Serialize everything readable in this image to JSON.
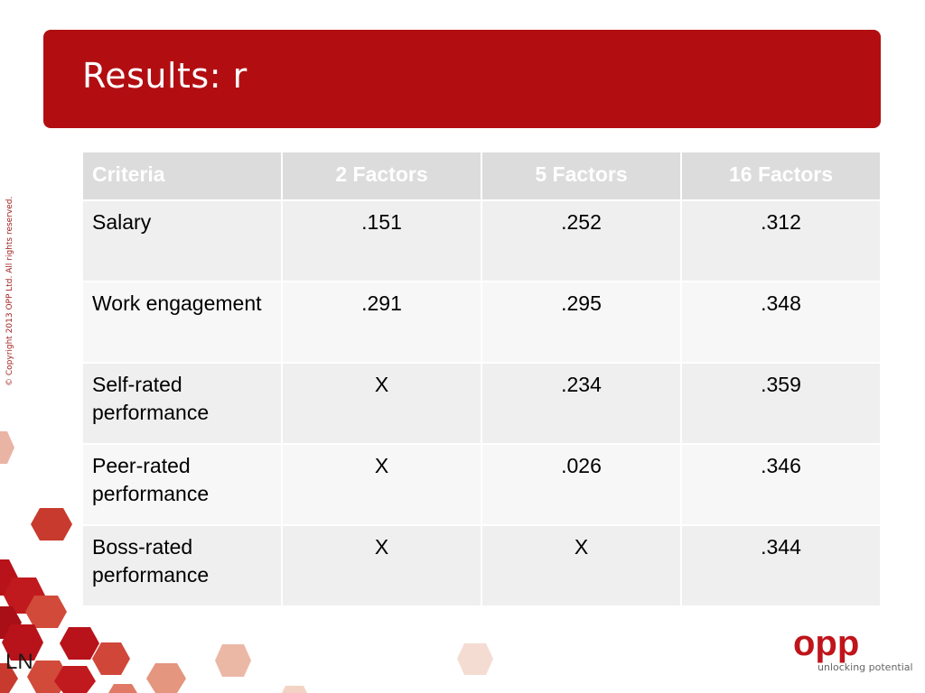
{
  "slide": {
    "title": "Results: r",
    "copyright": "© Copyright 2013 OPP Ltd. All rights reserved.",
    "footer_initials": "LN"
  },
  "table": {
    "headers": [
      "Criteria",
      "2 Factors",
      "5 Factors",
      "16 Factors"
    ],
    "rows": [
      {
        "criterion": "Salary",
        "f2": ".151",
        "f5": ".252",
        "f16": ".312"
      },
      {
        "criterion": "Work engagement",
        "f2": ".291",
        "f5": ".295",
        "f16": ".348"
      },
      {
        "criterion": "Self-rated performance",
        "f2": "X",
        "f5": ".234",
        "f16": ".359"
      },
      {
        "criterion": "Peer-rated performance",
        "f2": "X",
        "f5": ".026",
        "f16": ".346"
      },
      {
        "criterion": "Boss-rated performance",
        "f2": "X",
        "f5": "X",
        "f16": ".344"
      }
    ]
  },
  "logo": {
    "wordmark": "opp",
    "tagline": "unlocking potential",
    "color": "#c0141b"
  },
  "colors": {
    "title_bar": "#b20e12",
    "header_row": "#dcdcdc",
    "row_light": "#efefef",
    "row_lighter": "#f7f7f7",
    "hex_dark": "#b8121a",
    "hex_mid": "#d0473a",
    "hex_light": "#eab4a4"
  }
}
